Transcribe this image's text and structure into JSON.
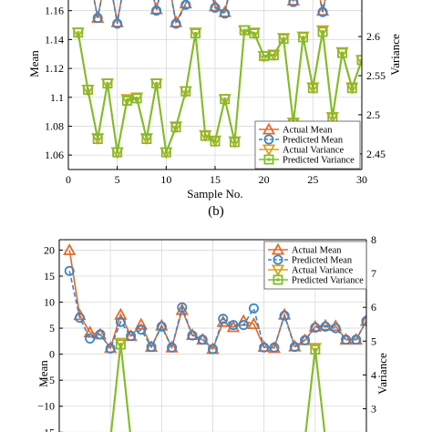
{
  "colors": {
    "actual_mean": "#e36b2c",
    "predicted_mean": "#3a85c9",
    "actual_variance": "#d9a21b",
    "predicted_variance": "#7fbe2c"
  },
  "panel_caption": "(b)",
  "chart_data": [
    {
      "type": "line",
      "title": "",
      "xlabel": "Sample No.",
      "ylabel": "Mean",
      "y2label": "Variance",
      "xlim": [
        0,
        30
      ],
      "ylim": [
        1.05,
        1.18
      ],
      "y2lim": [
        2.43,
        2.67
      ],
      "xticks": [
        0,
        5,
        10,
        15,
        20,
        25,
        30
      ],
      "yticks": [
        1.06,
        1.08,
        1.1,
        1.12,
        1.14,
        1.16
      ],
      "ytick_labels": [
        "1.06",
        "1.08",
        "1.1",
        "1.12",
        "1.14",
        "1.16"
      ],
      "y2ticks": [
        2.45,
        2.5,
        2.55,
        2.6,
        2.65
      ],
      "y2tick_labels": [
        "2.45",
        "2.5",
        "2.55",
        "2.6",
        "2.65"
      ],
      "grid": true,
      "legend_position": "bottom-right",
      "x": [
        1,
        2,
        3,
        4,
        5,
        6,
        7,
        8,
        9,
        10,
        11,
        12,
        13,
        14,
        15,
        16,
        17,
        18,
        19,
        20,
        21,
        22,
        23,
        24,
        25,
        26,
        27,
        28,
        29,
        30
      ],
      "series": [
        {
          "name": "Actual Mean",
          "axis": "left",
          "color_key": "actual_mean",
          "marker": "triangle-up",
          "values": [
            1.19,
            1.19,
            1.155,
            1.19,
            1.152,
            1.19,
            1.19,
            1.19,
            1.161,
            1.19,
            1.152,
            1.165,
            1.19,
            1.19,
            1.163,
            1.159,
            1.19,
            1.19,
            1.19,
            1.19,
            1.19,
            1.19,
            1.167,
            1.19,
            1.19,
            1.16,
            1.19,
            1.19,
            1.19,
            1.19
          ]
        },
        {
          "name": "Predicted Mean",
          "axis": "left",
          "color_key": "predicted_mean",
          "marker": "circle",
          "values": [
            1.19,
            1.19,
            1.155,
            1.19,
            1.151,
            1.19,
            1.19,
            1.19,
            1.16,
            1.19,
            1.151,
            1.164,
            1.19,
            1.19,
            1.162,
            1.158,
            1.19,
            1.19,
            1.19,
            1.19,
            1.19,
            1.19,
            1.166,
            1.19,
            1.19,
            1.159,
            1.19,
            1.19,
            1.19,
            1.19
          ]
        },
        {
          "name": "Actual Variance",
          "axis": "right",
          "color_key": "actual_variance",
          "marker": "triangle-down",
          "values": [
            2.605,
            2.532,
            2.47,
            2.54,
            2.452,
            2.52,
            2.522,
            2.47,
            2.54,
            2.452,
            2.485,
            2.53,
            2.605,
            2.474,
            2.467,
            2.52,
            2.466,
            2.608,
            2.605,
            2.575,
            2.577,
            2.598,
            2.49,
            2.6,
            2.535,
            2.608,
            2.497,
            2.58,
            2.535,
            2.57
          ]
        },
        {
          "name": "Predicted Variance",
          "axis": "right",
          "color_key": "predicted_variance",
          "marker": "square",
          "values": [
            2.605,
            2.532,
            2.469,
            2.54,
            2.452,
            2.518,
            2.521,
            2.469,
            2.54,
            2.452,
            2.484,
            2.53,
            2.604,
            2.473,
            2.466,
            2.52,
            2.465,
            2.608,
            2.604,
            2.575,
            2.576,
            2.597,
            2.489,
            2.599,
            2.534,
            2.606,
            2.496,
            2.579,
            2.534,
            2.57
          ]
        }
      ]
    },
    {
      "type": "line",
      "title": "",
      "xlabel": "",
      "ylabel": "Mean",
      "y2label": "Variance",
      "xlim": [
        0,
        30
      ],
      "ylim": [
        -16,
        22
      ],
      "y2lim": [
        2.15,
        8
      ],
      "yticks": [
        -15,
        -10,
        -5,
        0,
        5,
        10,
        15,
        20
      ],
      "ytick_labels": [
        "−15",
        "−10",
        "−5",
        "0",
        "5",
        "10",
        "15",
        "20"
      ],
      "y2ticks": [
        3,
        4,
        5,
        6,
        7,
        8
      ],
      "y2tick_labels": [
        "3",
        "4",
        "5",
        "6",
        "7",
        "8"
      ],
      "grid": true,
      "legend_position": "top-right",
      "x": [
        1,
        2,
        3,
        4,
        5,
        6,
        7,
        8,
        9,
        10,
        11,
        12,
        13,
        14,
        15,
        16,
        17,
        18,
        19,
        20,
        21,
        22,
        23,
        24,
        25,
        26,
        27,
        28,
        29,
        30
      ],
      "series": [
        {
          "name": "Actual Mean",
          "axis": "left",
          "color_key": "actual_mean",
          "marker": "triangle-up",
          "values": [
            20,
            7.5,
            4.2,
            3.8,
            1.2,
            7.6,
            3.5,
            5.7,
            1.4,
            5.5,
            1.3,
            8.5,
            3.7,
            2.8,
            1,
            6.2,
            5.2,
            6.4,
            5.8,
            1.4,
            1.2,
            7.6,
            1.5,
            2.7,
            5.3,
            5.5,
            5.4,
            2.8,
            2.8,
            6.4
          ]
        },
        {
          "name": "Predicted Mean",
          "axis": "left",
          "color_key": "predicted_mean",
          "marker": "circle",
          "values": [
            16,
            7,
            3,
            3.8,
            1.1,
            6.2,
            3.5,
            4.7,
            1.4,
            5.3,
            1.3,
            9,
            3.6,
            2.8,
            1,
            6.8,
            5.6,
            5.6,
            8.8,
            1.3,
            1.3,
            7.4,
            1.4,
            2.7,
            5.1,
            5.3,
            5,
            2.8,
            2.8,
            6.4
          ]
        },
        {
          "name": "Actual Variance",
          "axis": "right",
          "color_key": "actual_variance",
          "marker": "triangle-down",
          "values": [
            2.1,
            2.1,
            2.1,
            2.1,
            2.1,
            4.95,
            2.1,
            2.1,
            2.1,
            2.1,
            2.1,
            2.1,
            2.1,
            2.1,
            2.1,
            2.1,
            2.1,
            2.1,
            2.1,
            2.1,
            2.1,
            2.1,
            2.1,
            2.1,
            4.8,
            2.1,
            2.1,
            2.1,
            2.1,
            2.1
          ]
        },
        {
          "name": "Predicted Variance",
          "axis": "right",
          "color_key": "predicted_variance",
          "marker": "square",
          "values": [
            2.1,
            2.1,
            2.1,
            2.1,
            2.1,
            4.9,
            2.1,
            2.1,
            2.1,
            2.1,
            2.1,
            2.1,
            2.1,
            2.1,
            2.1,
            2.1,
            2.1,
            2.1,
            2.1,
            2.1,
            2.1,
            2.1,
            2.1,
            2.1,
            4.75,
            2.1,
            2.1,
            2.1,
            2.1,
            2.1
          ]
        }
      ]
    }
  ]
}
